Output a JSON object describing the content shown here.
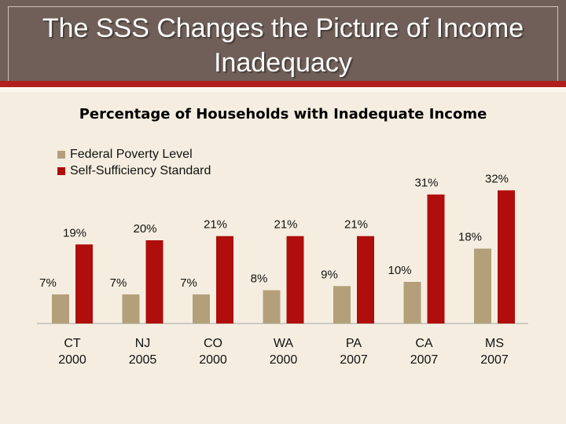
{
  "slide": {
    "title_line1": "The SSS Changes the Picture of Income",
    "title_line2": "Inadequacy",
    "accent_color": "#b01e1e",
    "header_color": "#6f5f58"
  },
  "chart_data": {
    "type": "bar",
    "title": "Percentage of Households with Inadequate Income",
    "categories": [
      [
        "CT",
        "2000"
      ],
      [
        "NJ",
        "2005"
      ],
      [
        "CO",
        "2000"
      ],
      [
        "WA",
        "2000"
      ],
      [
        "PA",
        "2007"
      ],
      [
        "CA",
        "2007"
      ],
      [
        "MS",
        "2007"
      ]
    ],
    "series": [
      {
        "name": "Federal Poverty Level",
        "color": "#b3a07b",
        "values": [
          7,
          7,
          7,
          8,
          9,
          10,
          18
        ],
        "labels": [
          "7%",
          "7%",
          "7%",
          "8%",
          "9%",
          "10%",
          "18%"
        ]
      },
      {
        "name": "Self-Sufficiency Standard",
        "color": "#b00d0d",
        "values": [
          19,
          20,
          21,
          21,
          21,
          31,
          32
        ],
        "labels": [
          "19%",
          "20%",
          "21%",
          "21%",
          "21%",
          "31%",
          "32%"
        ]
      }
    ],
    "xlabel": "",
    "ylabel": "",
    "ylim": [
      0,
      35
    ],
    "grid": false,
    "legend_position": "top-left"
  }
}
